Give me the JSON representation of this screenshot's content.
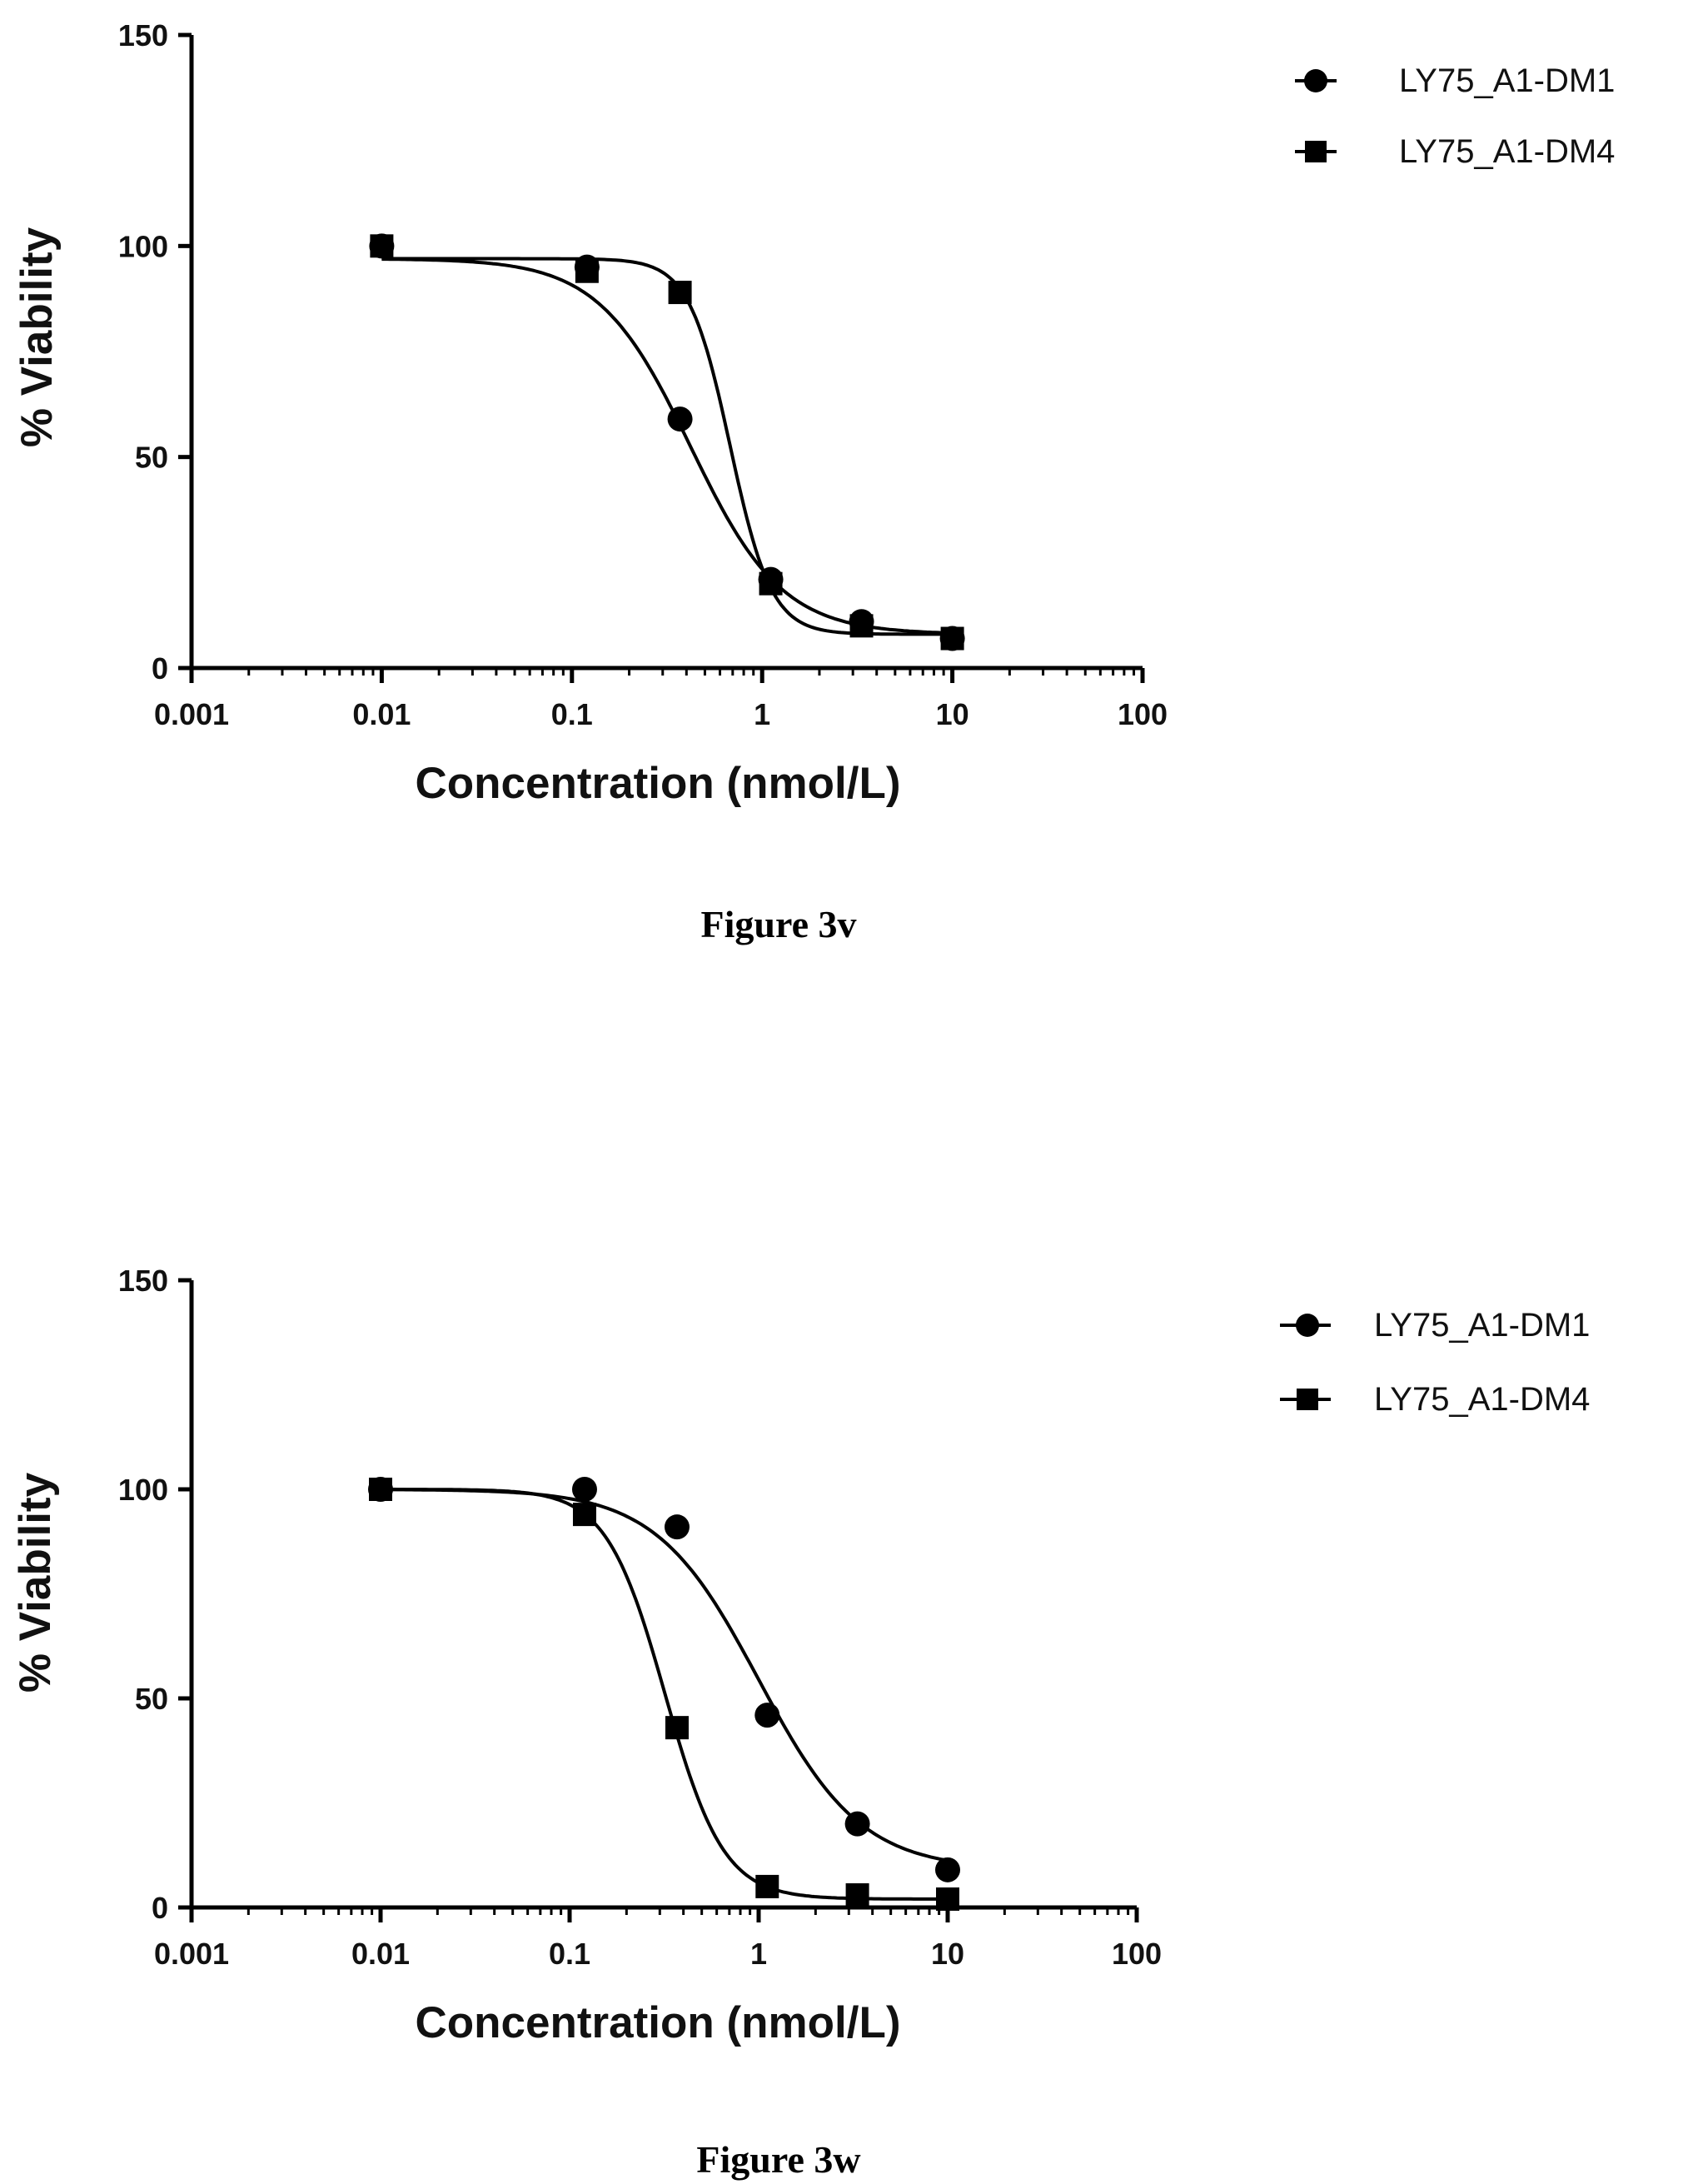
{
  "chart_data": [
    {
      "type": "scatter",
      "caption": "Figure 3v",
      "xlabel": "Concentration (nmol/L)",
      "ylabel": "% Viability",
      "x_scale": "log",
      "xlim": [
        0.001,
        100
      ],
      "ylim": [
        0,
        150
      ],
      "x_ticks": [
        "0.001",
        "0.01",
        "0.1",
        "1",
        "10",
        "100"
      ],
      "y_ticks": [
        "0",
        "50",
        "100",
        "150"
      ],
      "legend_position": "top-right",
      "series": [
        {
          "name": "LY75_A1-DM1",
          "marker": "circle",
          "x": [
            0.01,
            0.12,
            0.37,
            1.11,
            3.33,
            10
          ],
          "y": [
            100,
            95,
            59,
            21,
            11,
            7
          ],
          "fit": {
            "top": 97,
            "bottom": 8,
            "ec50": 0.42,
            "hill": 1.8
          }
        },
        {
          "name": "LY75_A1-DM4",
          "marker": "square",
          "x": [
            0.01,
            0.12,
            0.37,
            1.11,
            3.33,
            10
          ],
          "y": [
            100,
            94,
            89,
            20,
            10,
            7
          ],
          "fit": {
            "top": 97,
            "bottom": 8,
            "ec50": 0.68,
            "hill": 4.0
          }
        }
      ]
    },
    {
      "type": "scatter",
      "caption": "Figure 3w",
      "xlabel": "Concentration (nmol/L)",
      "ylabel": "% Viability",
      "x_scale": "log",
      "xlim": [
        0.001,
        100
      ],
      "ylim": [
        0,
        150
      ],
      "x_ticks": [
        "0.001",
        "0.01",
        "0.1",
        "1",
        "10",
        "100"
      ],
      "y_ticks": [
        "0",
        "50",
        "100",
        "150"
      ],
      "legend_position": "top-right",
      "series": [
        {
          "name": "LY75_A1-DM1",
          "marker": "circle",
          "x": [
            0.01,
            0.12,
            0.37,
            1.11,
            3.33,
            10
          ],
          "y": [
            100,
            100,
            91,
            46,
            20,
            9
          ],
          "fit": {
            "top": 100,
            "bottom": 9,
            "ec50": 1.0,
            "hill": 1.6
          }
        },
        {
          "name": "LY75_A1-DM4",
          "marker": "square",
          "x": [
            0.01,
            0.12,
            0.37,
            1.11,
            3.33,
            10
          ],
          "y": [
            100,
            94,
            43,
            5,
            3,
            2
          ],
          "fit": {
            "top": 100,
            "bottom": 2,
            "ec50": 0.32,
            "hill": 2.8
          }
        }
      ]
    }
  ]
}
